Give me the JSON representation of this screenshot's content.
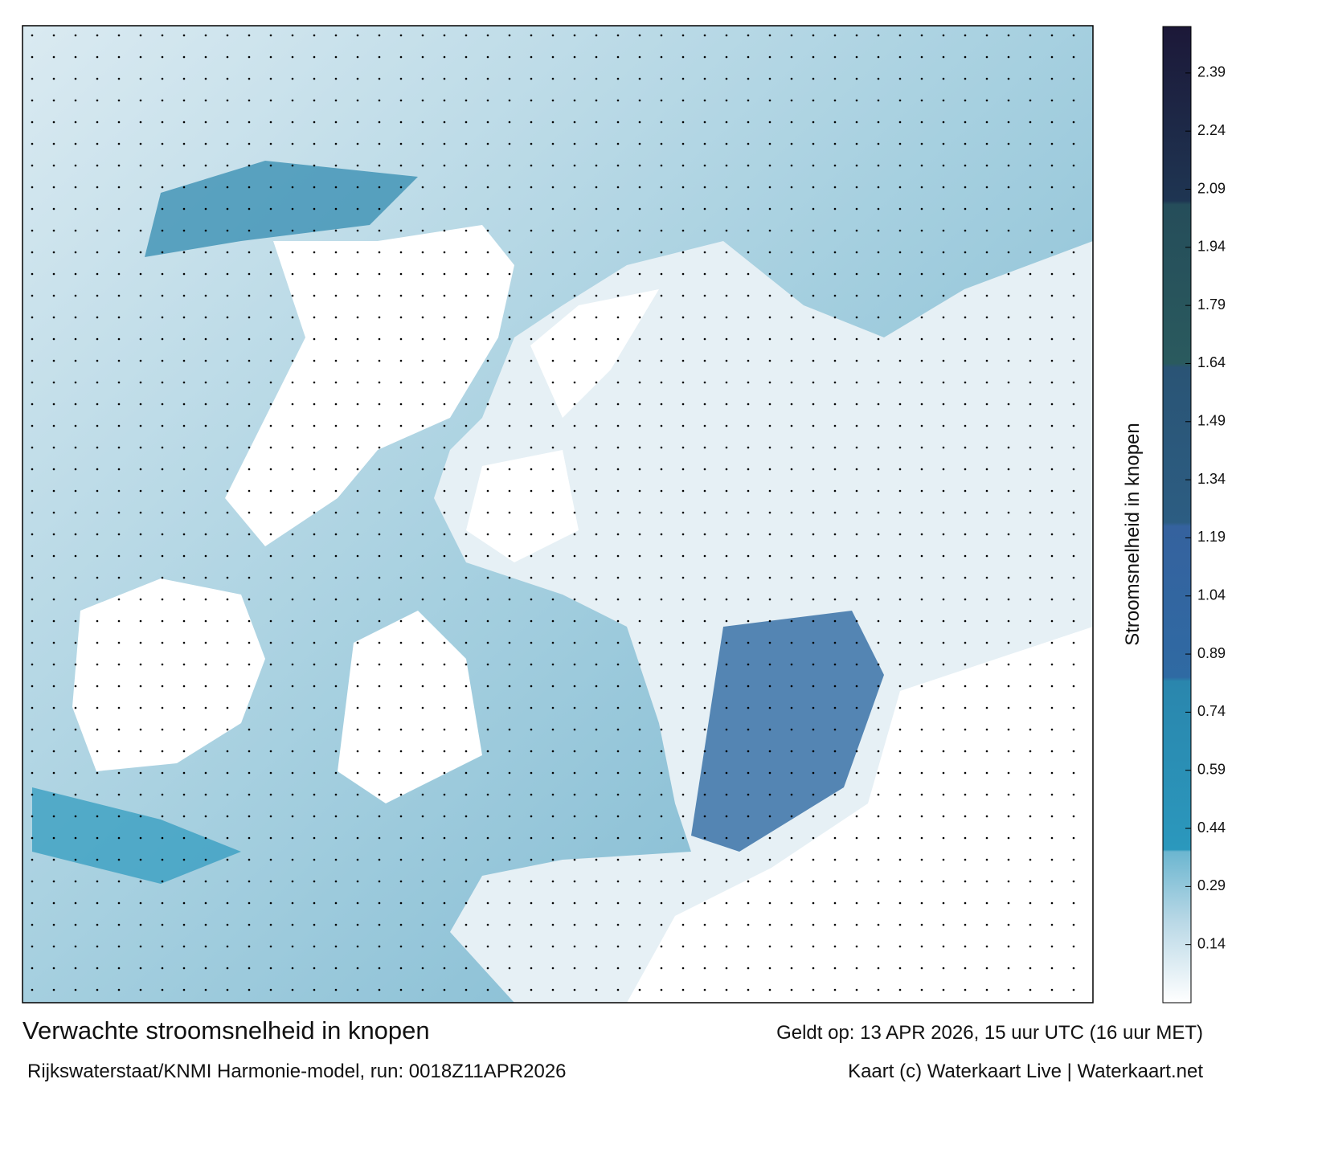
{
  "map": {
    "title": "Verwachte stroomsnelheid in knopen",
    "source": "Rijkswaterstaat/KNMI Harmonie-model, run: 0018Z11APR2026",
    "valid": "Geldt op: 13 APR 2026, 15 uur UTC (16 uur MET)",
    "credit": "Kaart (c) Waterkaart Live | Waterkaart.net"
  },
  "chart_data": {
    "type": "colorbar",
    "label": "Stroomsnelheid in knopen",
    "ylim": [
      -0.01,
      2.51
    ],
    "yticks": [
      0.14,
      0.29,
      0.44,
      0.59,
      0.74,
      0.89,
      1.04,
      1.19,
      1.34,
      1.49,
      1.64,
      1.79,
      1.94,
      2.09,
      2.24,
      2.39
    ],
    "colors": [
      {
        "value": -0.01,
        "color": "#ffffff"
      },
      {
        "value": 0.2,
        "color": "#b9d8e6"
      },
      {
        "value": 0.38,
        "color": "#6cb6d0"
      },
      {
        "value": 0.385,
        "color": "#2b98bd"
      },
      {
        "value": 0.82,
        "color": "#2a86ad"
      },
      {
        "value": 0.83,
        "color": "#2f6aa3"
      },
      {
        "value": 1.22,
        "color": "#35629e"
      },
      {
        "value": 1.23,
        "color": "#2c5d82"
      },
      {
        "value": 1.63,
        "color": "#2a5475"
      },
      {
        "value": 1.64,
        "color": "#2a5a5e"
      },
      {
        "value": 2.05,
        "color": "#254d5a"
      },
      {
        "value": 2.06,
        "color": "#1e3552"
      },
      {
        "value": 2.51,
        "color": "#1c1838"
      }
    ]
  }
}
